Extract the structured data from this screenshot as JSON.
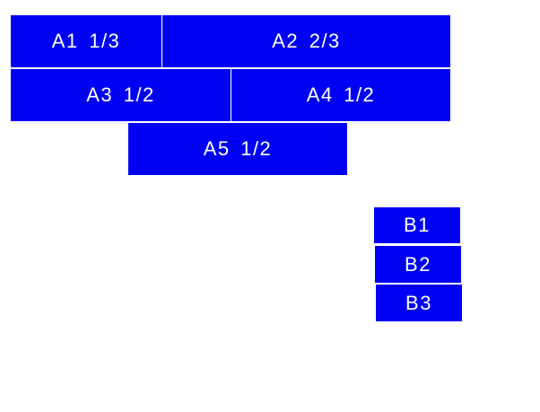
{
  "accent_color": "#0000f5",
  "group_a": [
    {
      "label": "A1 1/3"
    },
    {
      "label": "A2 2/3"
    },
    {
      "label": "A3 1/2"
    },
    {
      "label": "A4 1/2"
    },
    {
      "label": "A5 1/2"
    }
  ],
  "group_b": [
    {
      "label": "B1"
    },
    {
      "label": "B2"
    },
    {
      "label": "B3"
    }
  ]
}
